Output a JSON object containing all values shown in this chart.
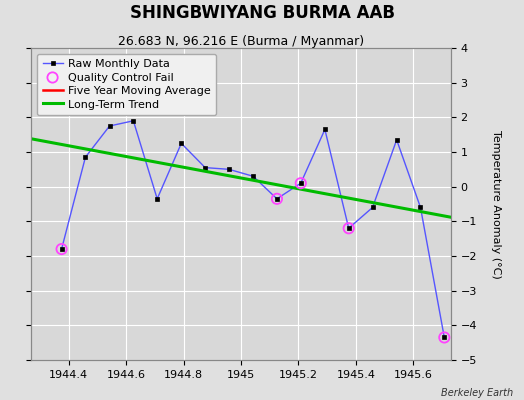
{
  "title": "SHINGBWIYANG BURMA AAB",
  "subtitle": "26.683 N, 96.216 E (Burma / Myanmar)",
  "credit": "Berkeley Earth",
  "ylabel": "Temperature Anomaly (°C)",
  "ylim": [
    -5,
    4
  ],
  "xlim": [
    1944.27,
    1945.73
  ],
  "xticks": [
    1944.4,
    1944.6,
    1944.8,
    1945.0,
    1945.2,
    1945.4,
    1945.6
  ],
  "yticks": [
    -5,
    -4,
    -3,
    -2,
    -1,
    0,
    1,
    2,
    3,
    4
  ],
  "raw_x": [
    1944.375,
    1944.458,
    1944.542,
    1944.625,
    1944.708,
    1944.792,
    1944.875,
    1944.958,
    1945.042,
    1945.125,
    1945.208,
    1945.292,
    1945.375,
    1945.458,
    1945.542,
    1945.625,
    1945.708
  ],
  "raw_y": [
    -1.8,
    0.85,
    1.75,
    1.9,
    -0.35,
    1.25,
    0.55,
    0.5,
    0.3,
    -0.35,
    0.1,
    1.65,
    -1.2,
    -0.6,
    1.35,
    -0.6,
    -4.35
  ],
  "qc_fail_x": [
    1944.375,
    1945.125,
    1945.208,
    1945.375,
    1945.708
  ],
  "qc_fail_y": [
    -1.8,
    -0.35,
    0.1,
    -1.2,
    -4.35
  ],
  "trend_x": [
    1944.27,
    1945.73
  ],
  "trend_y": [
    1.38,
    -0.88
  ],
  "raw_line_color": "#5555ff",
  "raw_marker_color": "#000000",
  "qc_color": "#ff44ff",
  "trend_color": "#00bb00",
  "moving_avg_color": "#ff0000",
  "background_color": "#e0e0e0",
  "plot_bg_color": "#d8d8d8",
  "grid_color": "#ffffff",
  "title_fontsize": 12,
  "subtitle_fontsize": 9,
  "label_fontsize": 8,
  "tick_fontsize": 8,
  "legend_fontsize": 8
}
